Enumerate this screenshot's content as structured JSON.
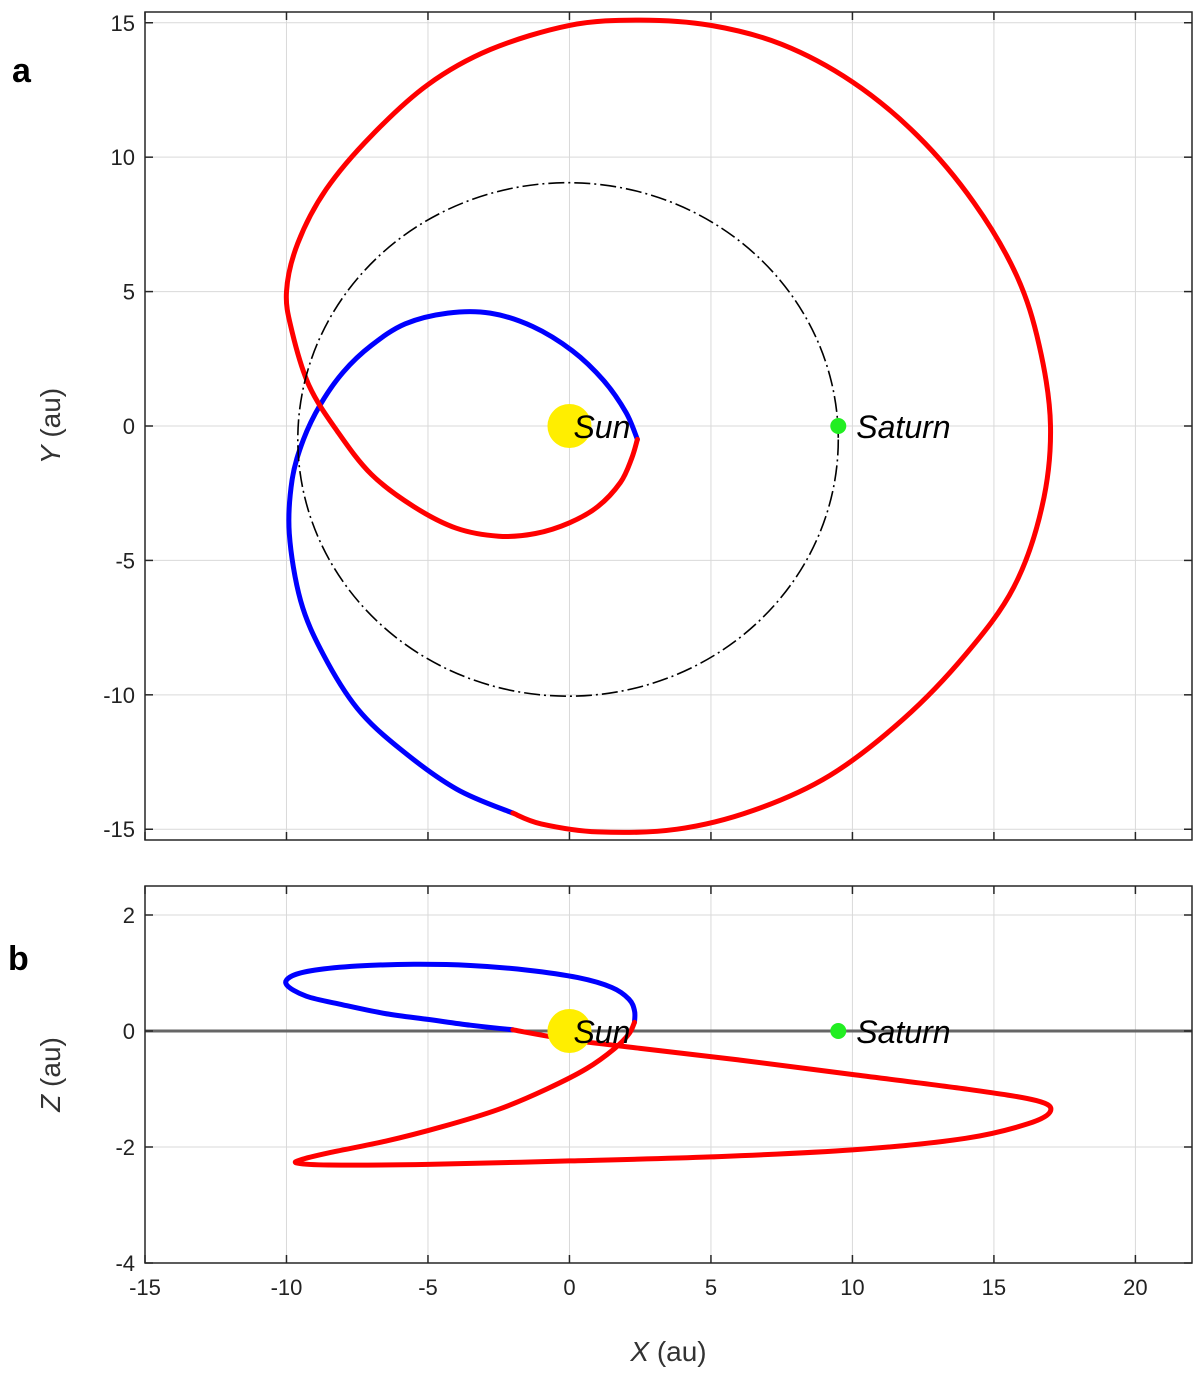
{
  "colors": {
    "inbound": "#0000ff",
    "outbound": "#ff0000",
    "saturn_orbit": "#000000",
    "sun": "#ffee00",
    "saturn": "#22ee22",
    "grid": "#d9d9d9",
    "zero_line": "#666666"
  },
  "chart_data": [
    {
      "type": "line",
      "panel_label": "a",
      "xlabel_var": "",
      "xlabel_unit": "",
      "ylabel_var": "Y",
      "ylabel_unit": " (au)",
      "xlim": [
        -15,
        22
      ],
      "ylim": [
        -15.4,
        15.4
      ],
      "xticks": [
        -15,
        -10,
        -5,
        0,
        5,
        10,
        15,
        20
      ],
      "yticks": [
        -15,
        -10,
        -5,
        0,
        5,
        10,
        15
      ],
      "yticklabels": [
        "-15",
        "-10",
        "-5",
        "0",
        "5",
        "10",
        "15"
      ],
      "grid": true,
      "series": [
        {
          "key": "inbound",
          "style": "solid",
          "x": [
            -2.0,
            -4.0,
            -6.0,
            -7.5,
            -8.7,
            -9.5,
            -9.9,
            -9.8,
            -9.4,
            -8.8,
            -8.0,
            -7.0,
            -5.8,
            -4.3,
            -2.8,
            -1.3,
            0.1,
            1.2,
            2.0,
            2.4
          ],
          "y": [
            -14.4,
            -13.5,
            -12.0,
            -10.5,
            -8.5,
            -6.5,
            -4.0,
            -2.0,
            -0.5,
            0.8,
            2.0,
            3.0,
            3.8,
            4.2,
            4.2,
            3.7,
            2.8,
            1.7,
            0.5,
            -0.5
          ]
        },
        {
          "key": "outbound",
          "style": "solid",
          "x": [
            2.4,
            2.2,
            1.8,
            1.0,
            0.0,
            -1.2,
            -2.5,
            -4.0,
            -5.5,
            -7.0,
            -8.2,
            -9.2,
            -9.8,
            -10.0,
            -9.6,
            -8.6,
            -7.0,
            -5.0,
            -2.8,
            0.0,
            2.5,
            5.0,
            7.5,
            10.0,
            12.3,
            14.3,
            15.8,
            16.6,
            17.0,
            16.7,
            15.7,
            14.0,
            11.8,
            9.2,
            6.5,
            3.8,
            1.0,
            -1.0,
            -2.0
          ],
          "y": [
            -0.5,
            -1.2,
            -2.1,
            -3.0,
            -3.6,
            -4.0,
            -4.1,
            -3.8,
            -3.0,
            -1.8,
            -0.2,
            1.5,
            3.5,
            5.0,
            6.8,
            8.8,
            10.8,
            12.7,
            14.0,
            14.9,
            15.1,
            14.9,
            14.2,
            12.8,
            10.8,
            8.3,
            5.6,
            3.0,
            0.0,
            -3.0,
            -6.0,
            -8.5,
            -10.9,
            -13.0,
            -14.3,
            -15.0,
            -15.1,
            -14.8,
            -14.4
          ]
        },
        {
          "key": "saturn_orbit",
          "style": "dashdot",
          "circle": {
            "cx": -0.05,
            "cy": -0.5,
            "rx": 9.55,
            "ry": 9.55
          }
        }
      ],
      "points": [
        {
          "key": "sun",
          "x": 0.0,
          "y": 0.0,
          "label": "Sun"
        },
        {
          "key": "saturn",
          "x": 9.5,
          "y": 0.0,
          "label": "Saturn"
        }
      ]
    },
    {
      "type": "line",
      "panel_label": "b",
      "xlabel_var": "X",
      "xlabel_unit": " (au)",
      "ylabel_var": "Z",
      "ylabel_unit": " (au)",
      "xlim": [
        -15,
        22
      ],
      "ylim": [
        -4,
        2.5
      ],
      "xticks": [
        -15,
        -10,
        -5,
        0,
        5,
        10,
        15,
        20
      ],
      "xticklabels": [
        "-15",
        "-10",
        "-5",
        "0",
        "5",
        "10",
        "15",
        "20"
      ],
      "yticks": [
        -4,
        -2,
        0,
        2
      ],
      "yticklabels": [
        "-4",
        "-2",
        "0",
        "2"
      ],
      "grid": true,
      "zero_line": true,
      "series": [
        {
          "key": "inbound",
          "style": "solid",
          "x": [
            -2.0,
            -3.5,
            -5.0,
            -6.5,
            -8.0,
            -9.3,
            -10.0,
            -9.8,
            -9.0,
            -7.5,
            -5.5,
            -3.5,
            -1.5,
            0.3,
            1.5,
            2.1,
            2.3,
            2.3
          ],
          "y": [
            0.02,
            0.1,
            0.2,
            0.3,
            0.45,
            0.6,
            0.8,
            0.95,
            1.05,
            1.12,
            1.15,
            1.13,
            1.05,
            0.92,
            0.75,
            0.55,
            0.35,
            0.15
          ]
        },
        {
          "key": "outbound",
          "style": "solid",
          "x": [
            2.3,
            2.1,
            1.6,
            0.6,
            -0.8,
            -2.5,
            -4.5,
            -6.5,
            -8.5,
            -9.5,
            -9.6,
            -8.5,
            -5.0,
            0.0,
            5.0,
            10.0,
            14.0,
            16.2,
            17.0,
            16.5,
            14.0,
            10.0,
            6.0,
            2.5,
            0.0,
            -2.0
          ],
          "y": [
            0.15,
            -0.05,
            -0.3,
            -0.65,
            -1.0,
            -1.35,
            -1.65,
            -1.9,
            -2.1,
            -2.22,
            -2.28,
            -2.31,
            -2.3,
            -2.24,
            -2.17,
            -2.05,
            -1.85,
            -1.6,
            -1.38,
            -1.2,
            -1.0,
            -0.75,
            -0.5,
            -0.3,
            -0.15,
            0.02
          ]
        }
      ],
      "points": [
        {
          "key": "sun",
          "x": 0.0,
          "y": 0.0,
          "label": "Sun"
        },
        {
          "key": "saturn",
          "x": 9.5,
          "y": 0.0,
          "label": "Saturn"
        }
      ]
    }
  ]
}
